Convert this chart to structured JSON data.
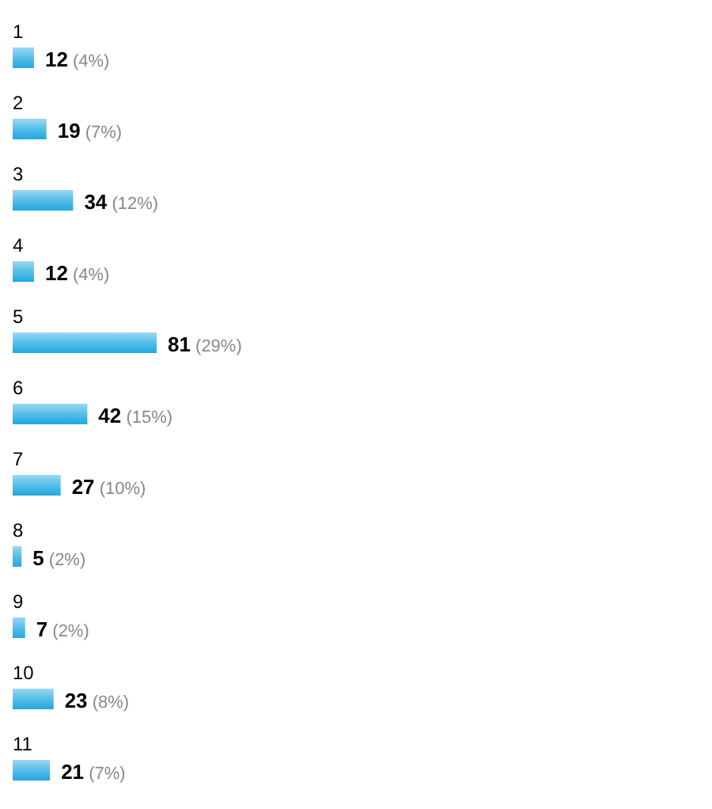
{
  "chart_data": {
    "type": "bar",
    "orientation": "horizontal",
    "categories": [
      "1",
      "2",
      "3",
      "4",
      "5",
      "6",
      "7",
      "8",
      "9",
      "10",
      "11"
    ],
    "values": [
      12,
      19,
      34,
      12,
      81,
      42,
      27,
      5,
      7,
      23,
      21
    ],
    "value_labels": [
      "12 (4%)",
      "19 (7%)",
      "34 (12%)",
      "12 (4%)",
      "81 (29%)",
      "42 (15%)",
      "27 (10%)",
      "5 (2%)",
      "7 (2%)",
      "23 (8%)",
      "21 (7%)"
    ],
    "color": "#1fa8e0"
  }
}
